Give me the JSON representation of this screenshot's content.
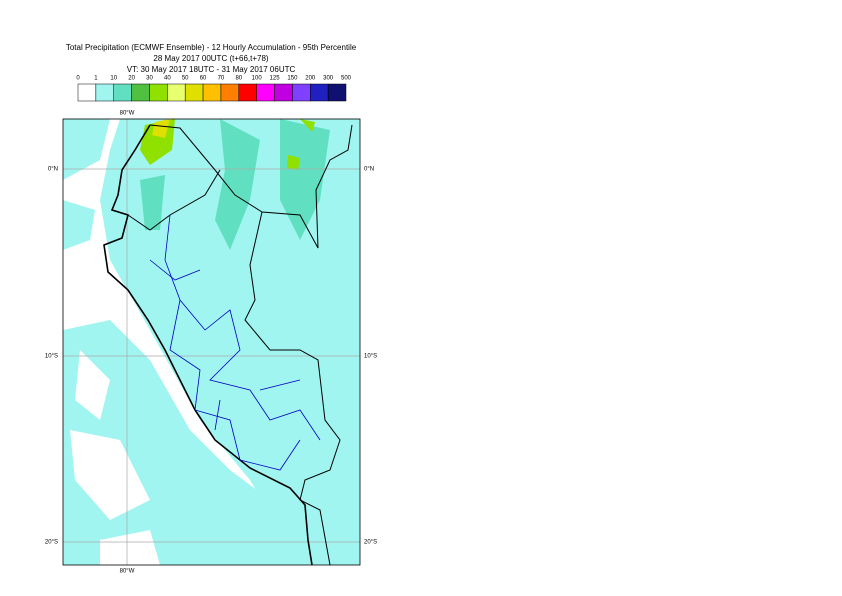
{
  "map": {
    "title": [
      "Total Precipitation (ECMWF Ensemble) - 12 Hourly Accumulation - 95th Percentile",
      "28 May 2017 00UTC (t+66,t+78)",
      "VT: 30 May 2017 18UTC - 31 May 2017 06UTC"
    ],
    "legend": {
      "labels": [
        "0",
        "1",
        "10",
        "20",
        "30",
        "40",
        "50",
        "60",
        "70",
        "80",
        "100",
        "125",
        "150",
        "200",
        "300",
        "500"
      ],
      "colors": [
        "#ffffff",
        "#a0f5f0",
        "#60e0c0",
        "#50c040",
        "#90e000",
        "#e8ff70",
        "#e0e000",
        "#ffc000",
        "#ff8000",
        "#ff0000",
        "#ff00ff",
        "#c000e0",
        "#8040ff",
        "#2020c0",
        "#101070"
      ]
    },
    "lon_label": "80°W",
    "lat_labels": [
      "0°N",
      "10°S",
      "20°S"
    ]
  }
}
